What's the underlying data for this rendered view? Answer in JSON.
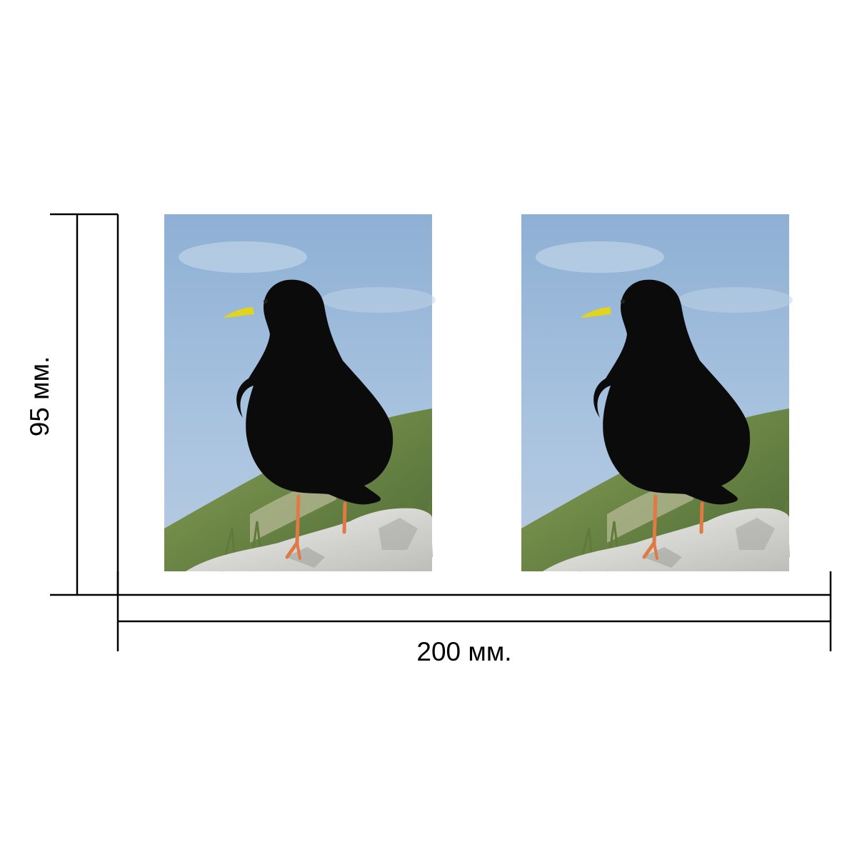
{
  "dimensions": {
    "height_label": "95 мм.",
    "width_label": "200 мм."
  },
  "photos": [
    {
      "subject": "alpine-chough-bird",
      "description_icon": "black-bird-on-rock"
    },
    {
      "subject": "alpine-chough-bird",
      "description_icon": "black-bird-on-rock"
    }
  ],
  "colors": {
    "sky_top": "#8fb0d3",
    "sky_bottom": "#a9c4e0",
    "hill_green": "#6f8a4a",
    "rock": "#d9d9d6",
    "bird": "#0b0b0b",
    "beak": "#e2d41b",
    "legs": "#e07a45",
    "dimension_lines": "#000000"
  }
}
